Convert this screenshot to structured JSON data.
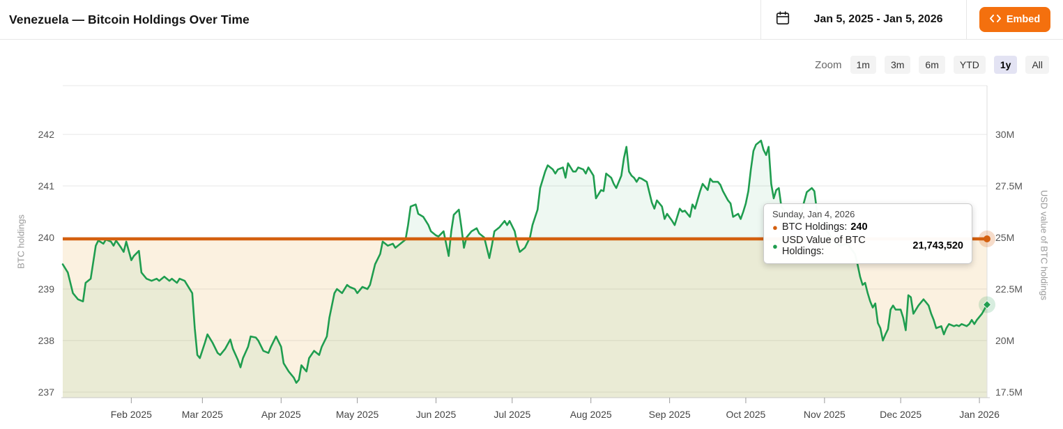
{
  "header": {
    "title": "Venezuela — Bitcoin Holdings Over Time",
    "date_range": "Jan 5, 2025 - Jan 5, 2026",
    "embed_label": "Embed"
  },
  "zoom_controls": {
    "label": "Zoom",
    "active": "1y",
    "options": [
      {
        "label": "1m"
      },
      {
        "label": "3m"
      },
      {
        "label": "6m"
      },
      {
        "label": "YTD"
      },
      {
        "label": "1y"
      },
      {
        "label": "All"
      }
    ]
  },
  "tooltip": {
    "date": "Sunday, Jan 4, 2026",
    "rows": [
      {
        "label": "BTC Holdings:",
        "value": "240",
        "color": "#d4600f"
      },
      {
        "label": "USD Value of BTC Holdings:",
        "value": "21,743,520",
        "color": "#1f9d4f"
      }
    ]
  },
  "colors": {
    "accent_orange": "#f4700e",
    "btc_line": "#d4600f",
    "usd_line": "#1f9d4f",
    "grid": "#e7e7e7",
    "active_zoom_bg": "#e3e3f3"
  },
  "chart_data": {
    "type": "line",
    "title": "Venezuela — Bitcoin Holdings Over Time",
    "x_range_labels": [
      "Jan 5, 2025",
      "Jan 5, 2026"
    ],
    "grid": true,
    "legend": "none",
    "left_axis": {
      "label": "BTC holdings",
      "ticks": [
        "242",
        "241",
        "240",
        "239",
        "238",
        "237"
      ],
      "range": [
        236.9,
        242.9
      ]
    },
    "right_axis": {
      "label": "USD value of BTC holdings",
      "ticks": [
        "30M",
        "27.5M",
        "25M",
        "22.5M",
        "20M",
        "17.5M"
      ],
      "range_musd": [
        17.5,
        30.4
      ]
    },
    "x_ticks": [
      {
        "label": "Feb 2025",
        "day": 27
      },
      {
        "label": "Mar 2025",
        "day": 55
      },
      {
        "label": "Apr 2025",
        "day": 86
      },
      {
        "label": "May 2025",
        "day": 116
      },
      {
        "label": "Jun 2025",
        "day": 147
      },
      {
        "label": "Jul 2025",
        "day": 177
      },
      {
        "label": "Aug 2025",
        "day": 208
      },
      {
        "label": "Sep 2025",
        "day": 239
      },
      {
        "label": "Oct 2025",
        "day": 269
      },
      {
        "label": "Nov 2025",
        "day": 300
      },
      {
        "label": "Dec 2025",
        "day": 330
      },
      {
        "label": "Jan 2026",
        "day": 361
      }
    ],
    "series": [
      {
        "name": "BTC Holdings",
        "axis": "left",
        "color": "#d4600f",
        "constant_value": 240,
        "marker": "circle"
      },
      {
        "name": "USD Value of BTC Holdings",
        "axis": "right",
        "color": "#1f9d4f",
        "marker": "diamond",
        "last_point": {
          "date": "Sunday, Jan 4, 2026",
          "value_usd": 21743520
        },
        "points_day_musd": [
          [
            0,
            23.7
          ],
          [
            2,
            23.3
          ],
          [
            4,
            22.3
          ],
          [
            6,
            22.0
          ],
          [
            8,
            21.9
          ],
          [
            9,
            22.8
          ],
          [
            11,
            23.0
          ],
          [
            13,
            24.6
          ],
          [
            14,
            24.85
          ],
          [
            16,
            24.7
          ],
          [
            17,
            24.9
          ],
          [
            19,
            24.8
          ],
          [
            20,
            24.6
          ],
          [
            21,
            24.85
          ],
          [
            23,
            24.5
          ],
          [
            24,
            24.3
          ],
          [
            25,
            24.8
          ],
          [
            27,
            23.9
          ],
          [
            28,
            24.1
          ],
          [
            30,
            24.35
          ],
          [
            31,
            23.3
          ],
          [
            33,
            23.0
          ],
          [
            35,
            22.9
          ],
          [
            37,
            23.0
          ],
          [
            38,
            22.9
          ],
          [
            40,
            23.1
          ],
          [
            42,
            22.9
          ],
          [
            43,
            23.0
          ],
          [
            45,
            22.8
          ],
          [
            46,
            23.0
          ],
          [
            48,
            22.9
          ],
          [
            49,
            22.7
          ],
          [
            51,
            22.3
          ],
          [
            52,
            20.6
          ],
          [
            53,
            19.3
          ],
          [
            54,
            19.15
          ],
          [
            56,
            19.9
          ],
          [
            57,
            20.3
          ],
          [
            59,
            19.9
          ],
          [
            61,
            19.4
          ],
          [
            62,
            19.3
          ],
          [
            64,
            19.6
          ],
          [
            66,
            20.05
          ],
          [
            67,
            19.6
          ],
          [
            69,
            19.05
          ],
          [
            70,
            18.7
          ],
          [
            71,
            19.15
          ],
          [
            73,
            19.7
          ],
          [
            74,
            20.2
          ],
          [
            76,
            20.15
          ],
          [
            77,
            20.0
          ],
          [
            79,
            19.5
          ],
          [
            81,
            19.4
          ],
          [
            82,
            19.7
          ],
          [
            84,
            20.2
          ],
          [
            86,
            19.7
          ],
          [
            87,
            18.9
          ],
          [
            89,
            18.5
          ],
          [
            91,
            18.2
          ],
          [
            92,
            17.95
          ],
          [
            93,
            18.1
          ],
          [
            94,
            18.8
          ],
          [
            96,
            18.5
          ],
          [
            97,
            19.15
          ],
          [
            99,
            19.5
          ],
          [
            101,
            19.3
          ],
          [
            102,
            19.7
          ],
          [
            104,
            20.2
          ],
          [
            105,
            21.1
          ],
          [
            107,
            22.3
          ],
          [
            108,
            22.5
          ],
          [
            110,
            22.3
          ],
          [
            112,
            22.7
          ],
          [
            113,
            22.6
          ],
          [
            115,
            22.5
          ],
          [
            116,
            22.3
          ],
          [
            118,
            22.6
          ],
          [
            120,
            22.5
          ],
          [
            121,
            22.7
          ],
          [
            123,
            23.7
          ],
          [
            125,
            24.2
          ],
          [
            126,
            24.8
          ],
          [
            128,
            24.6
          ],
          [
            130,
            24.7
          ],
          [
            131,
            24.5
          ],
          [
            133,
            24.7
          ],
          [
            135,
            24.9
          ],
          [
            136,
            25.6
          ],
          [
            137,
            26.5
          ],
          [
            139,
            26.6
          ],
          [
            140,
            26.15
          ],
          [
            142,
            26.0
          ],
          [
            144,
            25.6
          ],
          [
            145,
            25.3
          ],
          [
            147,
            25.1
          ],
          [
            148,
            25.05
          ],
          [
            150,
            25.3
          ],
          [
            152,
            24.1
          ],
          [
            153,
            25.3
          ],
          [
            154,
            26.1
          ],
          [
            156,
            26.35
          ],
          [
            157,
            25.5
          ],
          [
            158,
            24.5
          ],
          [
            159,
            25.0
          ],
          [
            161,
            25.3
          ],
          [
            163,
            25.45
          ],
          [
            164,
            25.2
          ],
          [
            166,
            25.0
          ],
          [
            168,
            24.0
          ],
          [
            169,
            24.6
          ],
          [
            170,
            25.3
          ],
          [
            172,
            25.5
          ],
          [
            174,
            25.8
          ],
          [
            175,
            25.6
          ],
          [
            176,
            25.8
          ],
          [
            178,
            25.3
          ],
          [
            179,
            24.7
          ],
          [
            180,
            24.3
          ],
          [
            182,
            24.5
          ],
          [
            184,
            25.0
          ],
          [
            185,
            25.6
          ],
          [
            187,
            26.35
          ],
          [
            188,
            27.4
          ],
          [
            190,
            28.2
          ],
          [
            191,
            28.5
          ],
          [
            193,
            28.3
          ],
          [
            194,
            28.1
          ],
          [
            195,
            28.3
          ],
          [
            197,
            28.4
          ],
          [
            198,
            27.9
          ],
          [
            199,
            28.6
          ],
          [
            201,
            28.2
          ],
          [
            202,
            28.2
          ],
          [
            203,
            28.4
          ],
          [
            205,
            28.3
          ],
          [
            206,
            28.1
          ],
          [
            207,
            28.4
          ],
          [
            209,
            28.0
          ],
          [
            210,
            26.9
          ],
          [
            212,
            27.3
          ],
          [
            213,
            27.25
          ],
          [
            214,
            28.1
          ],
          [
            216,
            27.9
          ],
          [
            217,
            27.6
          ],
          [
            218,
            27.4
          ],
          [
            220,
            28.0
          ],
          [
            221,
            28.85
          ],
          [
            222,
            29.4
          ],
          [
            223,
            28.2
          ],
          [
            224,
            28.0
          ],
          [
            225,
            27.9
          ],
          [
            226,
            27.7
          ],
          [
            227,
            27.9
          ],
          [
            228,
            27.85
          ],
          [
            230,
            27.7
          ],
          [
            232,
            26.7
          ],
          [
            233,
            26.4
          ],
          [
            234,
            26.8
          ],
          [
            236,
            26.5
          ],
          [
            237,
            25.9
          ],
          [
            238,
            26.15
          ],
          [
            240,
            25.8
          ],
          [
            241,
            25.6
          ],
          [
            243,
            26.4
          ],
          [
            244,
            26.25
          ],
          [
            245,
            26.3
          ],
          [
            247,
            26.0
          ],
          [
            248,
            26.6
          ],
          [
            249,
            26.4
          ],
          [
            251,
            27.25
          ],
          [
            252,
            27.6
          ],
          [
            254,
            27.3
          ],
          [
            255,
            27.85
          ],
          [
            256,
            27.7
          ],
          [
            258,
            27.7
          ],
          [
            259,
            27.55
          ],
          [
            260,
            27.25
          ],
          [
            262,
            26.8
          ],
          [
            263,
            26.65
          ],
          [
            264,
            26.0
          ],
          [
            266,
            26.15
          ],
          [
            267,
            25.9
          ],
          [
            268,
            26.25
          ],
          [
            269,
            26.65
          ],
          [
            270,
            27.25
          ],
          [
            271,
            28.3
          ],
          [
            272,
            29.2
          ],
          [
            273,
            29.5
          ],
          [
            275,
            29.7
          ],
          [
            276,
            29.25
          ],
          [
            277,
            29.0
          ],
          [
            278,
            29.4
          ],
          [
            279,
            27.6
          ],
          [
            280,
            26.9
          ],
          [
            281,
            27.3
          ],
          [
            282,
            27.4
          ],
          [
            283,
            26.5
          ],
          [
            286,
            26.0
          ],
          [
            288,
            25.6
          ],
          [
            291,
            26.3
          ],
          [
            293,
            27.2
          ],
          [
            295,
            27.4
          ],
          [
            296,
            27.25
          ],
          [
            297,
            26.3
          ],
          [
            301,
            25.3
          ],
          [
            304,
            24.8
          ],
          [
            306,
            24.6
          ],
          [
            309,
            24.7
          ],
          [
            312,
            24.2
          ],
          [
            313,
            23.7
          ],
          [
            314,
            23.1
          ],
          [
            315,
            22.7
          ],
          [
            316,
            22.8
          ],
          [
            317,
            22.3
          ],
          [
            318,
            21.9
          ],
          [
            319,
            21.6
          ],
          [
            320,
            21.8
          ],
          [
            321,
            20.85
          ],
          [
            322,
            20.6
          ],
          [
            323,
            20.0
          ],
          [
            324,
            20.3
          ],
          [
            325,
            20.55
          ],
          [
            326,
            21.5
          ],
          [
            327,
            21.7
          ],
          [
            328,
            21.5
          ],
          [
            330,
            21.5
          ],
          [
            331,
            21.1
          ],
          [
            332,
            20.5
          ],
          [
            333,
            22.2
          ],
          [
            334,
            22.1
          ],
          [
            335,
            21.3
          ],
          [
            336,
            21.5
          ],
          [
            337,
            21.7
          ],
          [
            339,
            22.0
          ],
          [
            340,
            21.85
          ],
          [
            341,
            21.7
          ],
          [
            342,
            21.3
          ],
          [
            343,
            21.0
          ],
          [
            344,
            20.6
          ],
          [
            346,
            20.7
          ],
          [
            347,
            20.3
          ],
          [
            348,
            20.6
          ],
          [
            349,
            20.8
          ],
          [
            351,
            20.7
          ],
          [
            352,
            20.75
          ],
          [
            353,
            20.7
          ],
          [
            354,
            20.8
          ],
          [
            356,
            20.7
          ],
          [
            357,
            20.8
          ],
          [
            358,
            21.0
          ],
          [
            359,
            20.8
          ],
          [
            360,
            21.0
          ],
          [
            362,
            21.3
          ],
          [
            364,
            21.74
          ]
        ]
      }
    ]
  }
}
